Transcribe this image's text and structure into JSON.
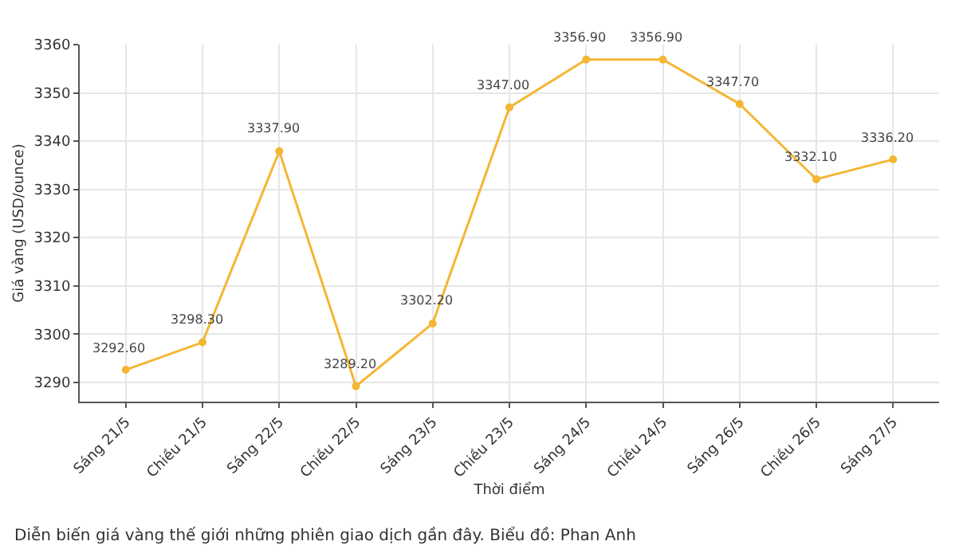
{
  "chart_data": {
    "type": "line",
    "xlabel": "Thời điểm",
    "ylabel": "Giá vàng (USD/ounce)",
    "categories": [
      "Sáng 21/5",
      "Chiều 21/5",
      "Sáng 22/5",
      "Chiều 22/5",
      "Sáng 23/5",
      "Chiều 23/5",
      "Sáng 24/5",
      "Chiều 24/5",
      "Sáng 26/5",
      "Chiều 26/5",
      "Sáng 27/5"
    ],
    "series": [
      {
        "color": "#f4b634",
        "values": [
          3292.6,
          3298.3,
          3337.9,
          3289.2,
          3302.2,
          3347.0,
          3356.9,
          3356.9,
          3347.7,
          3332.1,
          3336.2
        ],
        "value_labels": [
          "3292.60",
          "3298.30",
          "3337.90",
          "3289.20",
          "3302.20",
          "3347.00",
          "3356.90",
          "3356.90",
          "3347.70",
          "3332.10",
          "3336.20"
        ]
      }
    ],
    "ylim": [
      3286,
      3360
    ],
    "yticks": [
      3290,
      3300,
      3310,
      3320,
      3330,
      3340,
      3350,
      3360
    ],
    "grid": true,
    "marker": "circle",
    "line_style": "solid",
    "annotations": [
      "Diễn biến giá vàng thế giới những phiên giao dịch gần đây. Biểu đồ: Phan Anh"
    ]
  }
}
